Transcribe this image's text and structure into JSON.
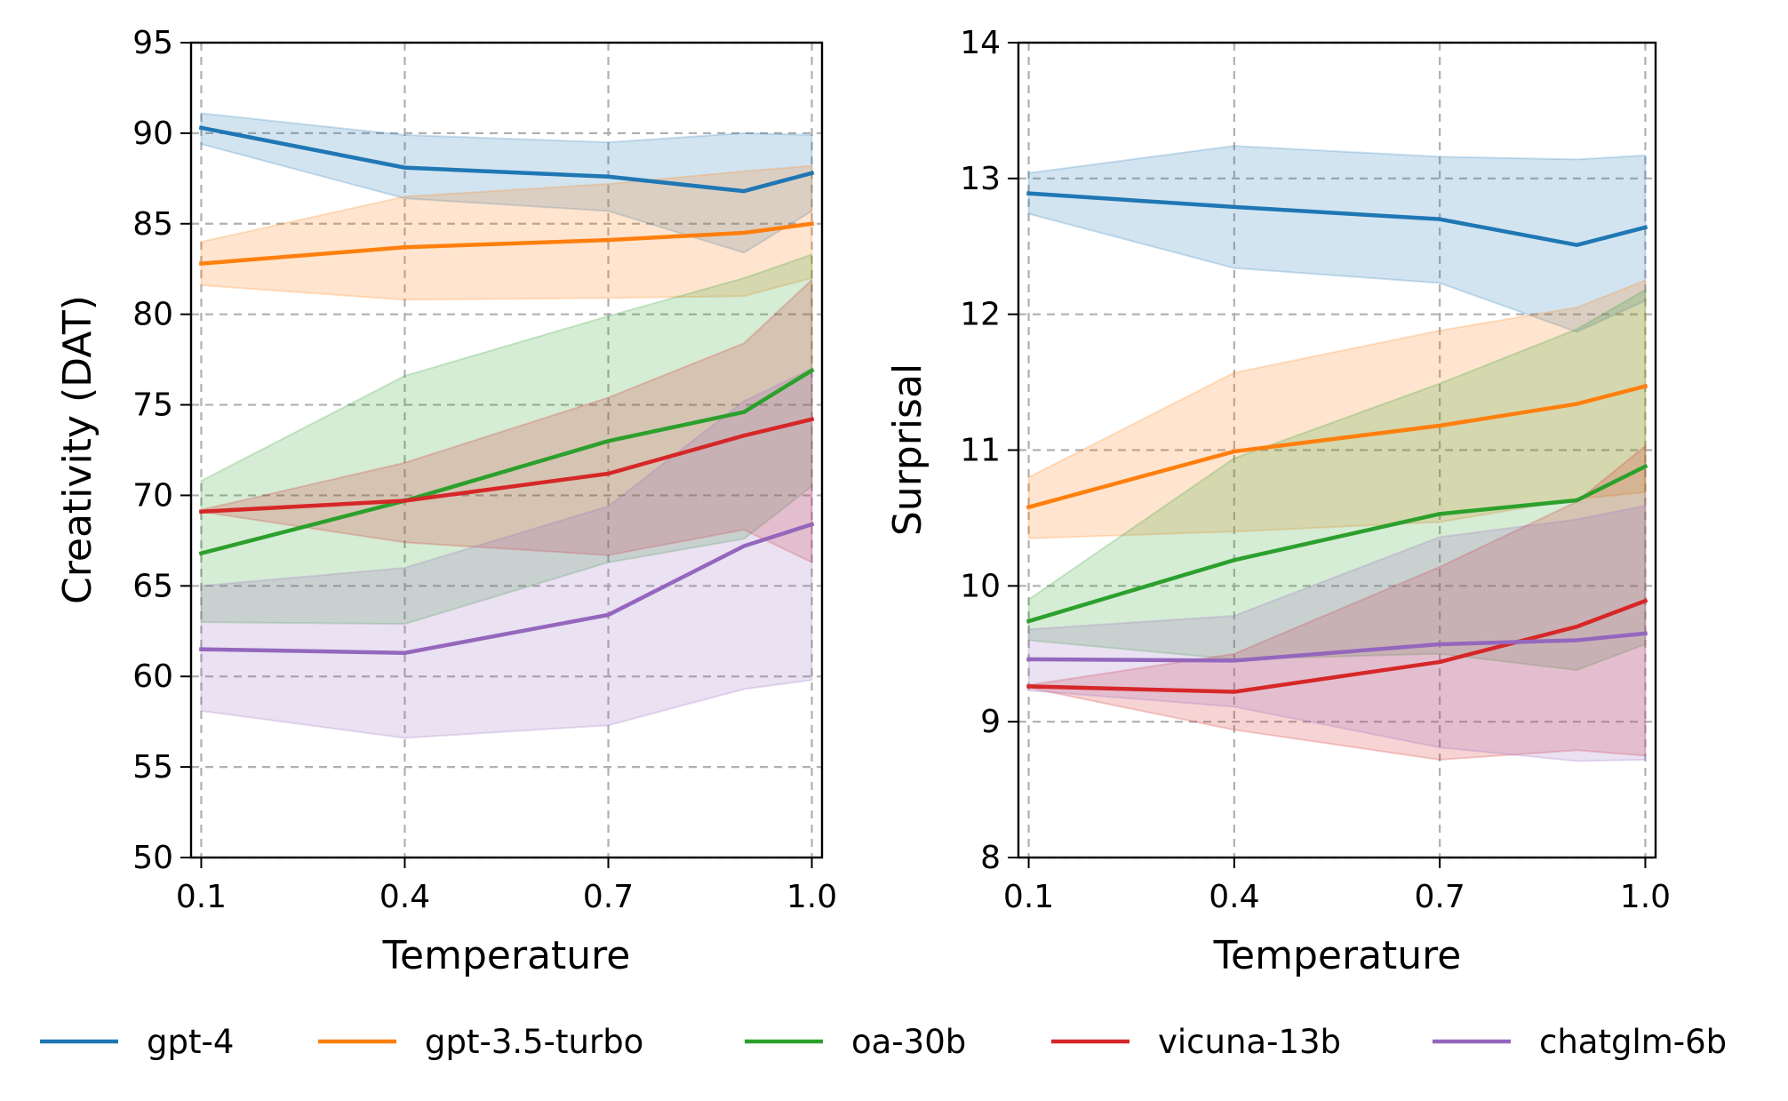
{
  "colors": {
    "gpt-4": "#1f77b4",
    "gpt-3.5-turbo": "#ff7f0e",
    "oa-30b": "#2ca02c",
    "vicuna-13b": "#d62728",
    "chatglm-6b": "#9467bd"
  },
  "legend": {
    "placement": "bottom-center",
    "items": [
      "gpt-4",
      "gpt-3.5-turbo",
      "oa-30b",
      "vicuna-13b",
      "chatglm-6b"
    ]
  },
  "chart_data": [
    {
      "type": "line",
      "xlabel": "Temperature",
      "ylabel": "Creativity (DAT)",
      "xlim": [
        0.085,
        1.015
      ],
      "ylim": [
        50,
        95
      ],
      "xticks": [
        "0.1",
        "0.4",
        "0.7",
        "1.0"
      ],
      "yticks": [
        "50",
        "55",
        "60",
        "65",
        "70",
        "75",
        "80",
        "85",
        "90",
        "95"
      ],
      "grid": true,
      "x": [
        0.1,
        0.4,
        0.7,
        0.9,
        1.0
      ],
      "series": [
        {
          "name": "gpt-4",
          "values": [
            90.3,
            88.1,
            87.6,
            86.8,
            87.8
          ],
          "lower": [
            89.4,
            86.4,
            85.7,
            83.4,
            85.7
          ],
          "upper": [
            91.1,
            89.9,
            89.5,
            90.0,
            89.9
          ]
        },
        {
          "name": "gpt-3.5-turbo",
          "values": [
            82.8,
            83.7,
            84.1,
            84.5,
            85.0
          ],
          "lower": [
            81.6,
            80.8,
            80.9,
            81.0,
            82.0
          ],
          "upper": [
            84.0,
            86.5,
            87.2,
            87.9,
            88.2
          ]
        },
        {
          "name": "oa-30b",
          "values": [
            66.8,
            69.7,
            73.0,
            74.6,
            76.9
          ],
          "lower": [
            63.0,
            62.9,
            66.3,
            67.6,
            70.5
          ],
          "upper": [
            70.8,
            76.6,
            79.9,
            82.0,
            83.3
          ]
        },
        {
          "name": "vicuna-13b",
          "values": [
            69.1,
            69.7,
            71.2,
            73.3,
            74.2
          ],
          "lower": [
            69.1,
            67.4,
            66.7,
            68.1,
            66.3
          ],
          "upper": [
            69.2,
            71.8,
            75.4,
            78.4,
            81.9
          ]
        },
        {
          "name": "chatglm-6b",
          "values": [
            61.5,
            61.3,
            63.4,
            67.2,
            68.4
          ],
          "lower": [
            58.1,
            56.6,
            57.3,
            59.3,
            59.8
          ],
          "upper": [
            65.0,
            66.0,
            69.4,
            75.2,
            77.0
          ]
        }
      ]
    },
    {
      "type": "line",
      "xlabel": "Temperature",
      "ylabel": "Surprisal",
      "xlim": [
        0.085,
        1.015
      ],
      "ylim": [
        8,
        14
      ],
      "xticks": [
        "0.1",
        "0.4",
        "0.7",
        "1.0"
      ],
      "yticks": [
        "8",
        "9",
        "10",
        "11",
        "12",
        "13",
        "14"
      ],
      "grid": true,
      "x": [
        0.1,
        0.4,
        0.7,
        0.9,
        1.0
      ],
      "series": [
        {
          "name": "gpt-4",
          "values": [
            12.89,
            12.79,
            12.7,
            12.51,
            12.64
          ],
          "lower": [
            12.74,
            12.34,
            12.23,
            11.87,
            12.1
          ],
          "upper": [
            13.04,
            13.24,
            13.16,
            13.14,
            13.17
          ]
        },
        {
          "name": "gpt-3.5-turbo",
          "values": [
            10.58,
            10.99,
            11.18,
            11.34,
            11.47
          ],
          "lower": [
            10.35,
            10.4,
            10.47,
            10.64,
            10.69
          ],
          "upper": [
            10.8,
            11.57,
            11.88,
            12.05,
            12.25
          ]
        },
        {
          "name": "oa-30b",
          "values": [
            9.74,
            10.19,
            10.53,
            10.63,
            10.88
          ],
          "lower": [
            9.6,
            9.46,
            9.5,
            9.38,
            9.57
          ],
          "upper": [
            9.9,
            10.94,
            11.49,
            11.89,
            12.18
          ]
        },
        {
          "name": "vicuna-13b",
          "values": [
            9.26,
            9.22,
            9.44,
            9.7,
            9.89
          ],
          "lower": [
            9.25,
            8.94,
            8.72,
            8.79,
            8.75
          ],
          "upper": [
            9.27,
            9.5,
            10.14,
            10.62,
            11.03
          ]
        },
        {
          "name": "chatglm-6b",
          "values": [
            9.46,
            9.45,
            9.57,
            9.6,
            9.65
          ],
          "lower": [
            9.23,
            9.11,
            8.81,
            8.71,
            8.72
          ],
          "upper": [
            9.68,
            9.78,
            10.36,
            10.49,
            10.59
          ]
        }
      ]
    }
  ]
}
